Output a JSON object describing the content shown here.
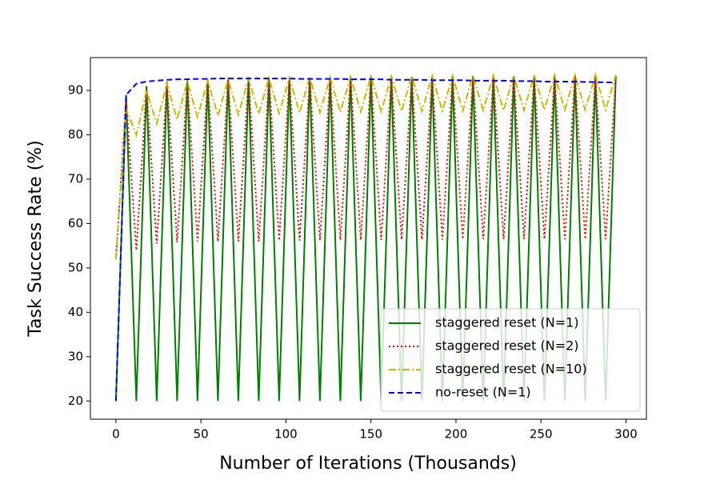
{
  "chart_data": {
    "type": "line",
    "x_label": "Number of Iterations (Thousands)",
    "y_label": "Task Success Rate (%)",
    "x": [
      0,
      6,
      12,
      18,
      24,
      30,
      36,
      42,
      48,
      54,
      60,
      66,
      72,
      78,
      84,
      90,
      96,
      102,
      108,
      114,
      120,
      126,
      132,
      138,
      144,
      150,
      156,
      162,
      168,
      174,
      180,
      186,
      192,
      198,
      204,
      210,
      216,
      222,
      228,
      234,
      240,
      246,
      252,
      258,
      264,
      270,
      276,
      282,
      288,
      294
    ],
    "series": [
      {
        "name": "staggered reset (N=1)",
        "color": "#008000",
        "style": "solid",
        "values": [
          20,
          89,
          20,
          91,
          20,
          92,
          20,
          92.3,
          20,
          92.5,
          20,
          92.6,
          20,
          92.7,
          20,
          92.8,
          20,
          92.8,
          20,
          92.9,
          20,
          92.9,
          20,
          93,
          20,
          93,
          20,
          93,
          20,
          93,
          20,
          93,
          20,
          93.1,
          20,
          93.1,
          20,
          93.1,
          20,
          93.2,
          20,
          93.2,
          20,
          93.2,
          20,
          93.2,
          20,
          93.2,
          20,
          93.2
        ]
      },
      {
        "name": "staggered reset (N=2)",
        "color": "#ff0000",
        "style": "dotted",
        "values": [
          52,
          88,
          54,
          90.5,
          55.5,
          91.5,
          55.8,
          92,
          56,
          92.3,
          56,
          92.5,
          56,
          92.6,
          56,
          92.7,
          56.2,
          92.8,
          56.2,
          92.8,
          56.2,
          92.9,
          56.3,
          93,
          56.3,
          93,
          56.3,
          93,
          56.4,
          93,
          56.4,
          93,
          56.4,
          93.1,
          56.5,
          93.1,
          56.5,
          93.1,
          56.5,
          93.2,
          56.5,
          93.2,
          56.5,
          93.2,
          56.5,
          93.2,
          56.5,
          93.2,
          56.5,
          93.2
        ]
      },
      {
        "name": "staggered reset (N=10)",
        "color": "#bfbf00",
        "style": "dashdot",
        "values": [
          52,
          86,
          80,
          90,
          82.5,
          91.5,
          83.5,
          92,
          84,
          92.3,
          84.3,
          92.5,
          84.5,
          92.7,
          84.7,
          92.8,
          84.8,
          92.9,
          85,
          93,
          85,
          93,
          85.1,
          93.1,
          85.2,
          93.2,
          85.2,
          93.2,
          85.3,
          93.3,
          85.3,
          93.3,
          85.4,
          93.3,
          85.4,
          93.4,
          85.5,
          93.4,
          85.5,
          93.4,
          85.5,
          93.5,
          85.6,
          93.5,
          85.6,
          93.5,
          85.6,
          93.5,
          85.6,
          93.5
        ]
      },
      {
        "name": "no-reset (N=1)",
        "color": "#0000ff",
        "style": "dashed",
        "values": [
          20,
          89,
          91.5,
          92,
          92.2,
          92.4,
          92.5,
          92.5,
          92.6,
          92.6,
          92.7,
          92.7,
          92.7,
          92.7,
          92.7,
          92.7,
          92.7,
          92.7,
          92.6,
          92.6,
          92.6,
          92.6,
          92.6,
          92.5,
          92.5,
          92.5,
          92.5,
          92.4,
          92.4,
          92.4,
          92.4,
          92.3,
          92.3,
          92.3,
          92.3,
          92.2,
          92.2,
          92.2,
          92.2,
          92.1,
          92.1,
          92.1,
          92.0,
          92.0,
          92.0,
          92.0,
          91.9,
          91.9,
          91.8,
          91.8
        ]
      }
    ],
    "xlim": [
      -15,
      312
    ],
    "ylim": [
      15.9,
      97.4
    ],
    "xticks": [
      0,
      50,
      100,
      150,
      200,
      250,
      300
    ],
    "yticks": [
      20,
      30,
      40,
      50,
      60,
      70,
      80,
      90
    ],
    "legend": "lower right"
  }
}
